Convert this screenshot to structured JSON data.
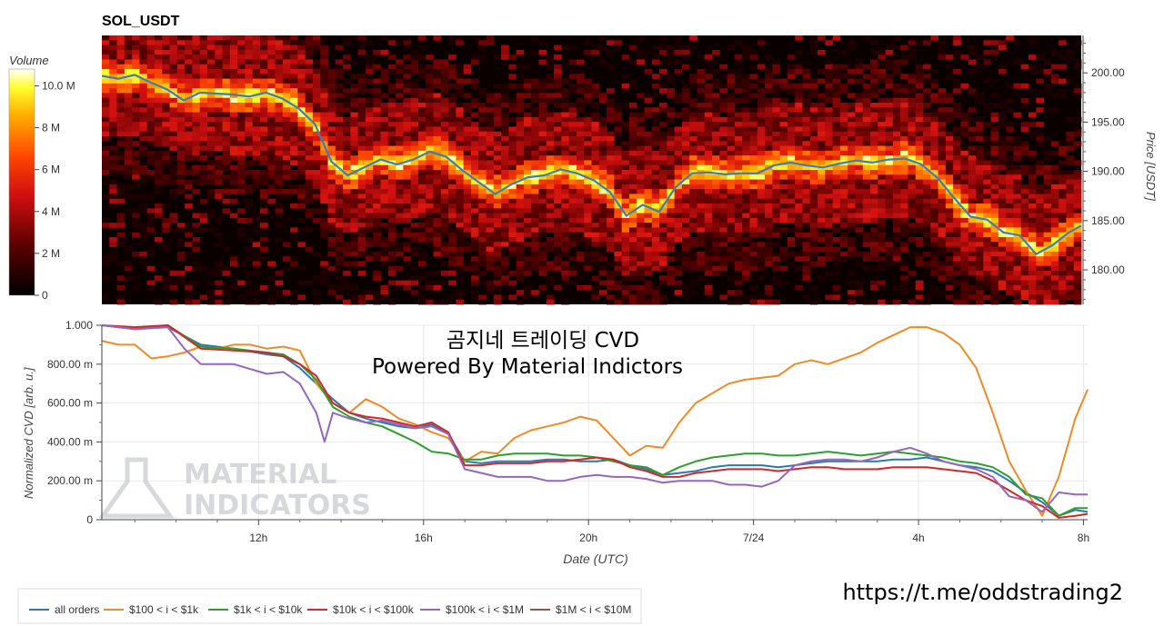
{
  "heatmap": {
    "title": "SOL_USDT",
    "colorbar": {
      "label": "Volume",
      "ticks": [
        {
          "value": 10,
          "label": "10.0 M"
        },
        {
          "value": 8,
          "label": "8 M"
        },
        {
          "value": 6,
          "label": "6 M"
        },
        {
          "value": 4,
          "label": "4 M"
        },
        {
          "value": 2,
          "label": "2 M"
        },
        {
          "value": 0,
          "label": "0"
        }
      ],
      "range": [
        0,
        10.8
      ]
    },
    "ylabel": "Price [USDT]",
    "ylim": [
      176.5,
      203.8
    ],
    "yticks": [
      {
        "value": 200,
        "label": "200.00"
      },
      {
        "value": 195,
        "label": "195.00"
      },
      {
        "value": 190,
        "label": "190.00"
      },
      {
        "value": 185,
        "label": "185.00"
      },
      {
        "value": 180,
        "label": "180.00"
      }
    ]
  },
  "cvd": {
    "overlay_title": "곰지네 트레이딩 CVD",
    "overlay_subtitle": "Powered By Material Indictors",
    "ylabel": "Normalized CVD [arb. u.]",
    "xlabel": "Date (UTC)",
    "yticks": [
      {
        "value": 1,
        "label": "1.000"
      },
      {
        "value": 0.8,
        "label": "800.00 m"
      },
      {
        "value": 0.6,
        "label": "600.00 m"
      },
      {
        "value": 0.4,
        "label": "400.00 m"
      },
      {
        "value": 0.2,
        "label": "200.00 m"
      },
      {
        "value": 0,
        "label": "0"
      }
    ],
    "xticks": [
      {
        "value": 12,
        "label": "12h"
      },
      {
        "value": 16,
        "label": "16h"
      },
      {
        "value": 20,
        "label": "20h"
      },
      {
        "value": 24,
        "label": "7/24"
      },
      {
        "value": 28,
        "label": "4h"
      },
      {
        "value": 32,
        "label": "8h"
      }
    ],
    "watermark": [
      "MATERIAL",
      "INDICATORS"
    ],
    "url": "https://t.me/oddstrading2"
  },
  "chart_data": [
    {
      "type": "heatmap",
      "title": "SOL_USDT",
      "x_unit": "hours (UTC)",
      "xlim": [
        8.2,
        32.1
      ],
      "ylabel": "Price [USDT]",
      "ylim": [
        176.5,
        203.8
      ],
      "colorbar_label": "Volume",
      "colorbar_range_M": [
        0,
        10.8
      ],
      "price_line": {
        "x": [
          8.2,
          8.6,
          9.0,
          9.4,
          9.8,
          10.2,
          10.6,
          11.0,
          11.4,
          11.8,
          12.2,
          12.6,
          13.0,
          13.4,
          13.8,
          14.2,
          14.6,
          15.0,
          15.4,
          15.8,
          16.2,
          16.6,
          17.0,
          17.4,
          17.8,
          18.2,
          18.6,
          19.0,
          19.4,
          19.8,
          20.2,
          20.6,
          21.0,
          21.4,
          21.8,
          22.2,
          22.6,
          23.0,
          23.4,
          23.8,
          24.2,
          24.6,
          25.0,
          25.4,
          25.8,
          26.2,
          26.6,
          27.0,
          27.4,
          27.8,
          28.2,
          28.6,
          29.0,
          29.4,
          29.8,
          30.2,
          30.6,
          31.0,
          31.4,
          31.8,
          32.1
        ],
        "y": [
          199.7,
          199.4,
          199.8,
          199.0,
          198.3,
          197.2,
          198.0,
          197.9,
          197.8,
          197.6,
          198.0,
          197.4,
          196.4,
          194.8,
          191.0,
          189.6,
          190.4,
          191.2,
          190.7,
          191.2,
          192.0,
          191.5,
          190.1,
          188.9,
          187.7,
          188.7,
          189.4,
          189.6,
          190.2,
          189.8,
          189.1,
          187.9,
          185.5,
          186.6,
          185.9,
          188.4,
          189.8,
          189.9,
          189.7,
          189.8,
          189.8,
          190.6,
          190.9,
          190.6,
          190.4,
          190.8,
          191.1,
          190.9,
          191.2,
          191.3,
          190.7,
          189.3,
          187.3,
          185.4,
          185.1,
          183.8,
          183.5,
          181.6,
          182.5,
          183.8,
          184.5
        ]
      }
    },
    {
      "type": "line",
      "ylabel": "Normalized CVD [arb. u.]",
      "xlabel": "Date (UTC)",
      "x_unit": "hours (UTC)",
      "xlim": [
        8.2,
        32.1
      ],
      "ylim": [
        0,
        1
      ],
      "legend_position": "bottom",
      "series": [
        {
          "name": "all orders",
          "color": "#2a78b4",
          "x": [
            8.2,
            9.0,
            9.8,
            10.6,
            11.4,
            12.2,
            12.6,
            13.0,
            13.4,
            13.8,
            14.2,
            14.6,
            15.0,
            15.4,
            15.8,
            16.2,
            16.6,
            17.0,
            17.4,
            17.8,
            18.2,
            18.6,
            19.0,
            19.4,
            19.8,
            20.2,
            20.6,
            21.0,
            21.4,
            21.8,
            22.2,
            22.6,
            23.0,
            23.4,
            23.8,
            24.2,
            24.6,
            25.0,
            25.4,
            25.8,
            26.2,
            26.6,
            27.0,
            27.4,
            27.8,
            28.2,
            28.6,
            29.0,
            29.4,
            29.8,
            30.2,
            30.6,
            31.0,
            31.4,
            31.8,
            32.1
          ],
          "y": [
            1.0,
            0.98,
            0.99,
            0.9,
            0.88,
            0.85,
            0.84,
            0.78,
            0.7,
            0.62,
            0.55,
            0.52,
            0.5,
            0.48,
            0.47,
            0.49,
            0.44,
            0.3,
            0.29,
            0.3,
            0.3,
            0.3,
            0.31,
            0.31,
            0.3,
            0.3,
            0.31,
            0.28,
            0.26,
            0.23,
            0.24,
            0.25,
            0.27,
            0.28,
            0.28,
            0.28,
            0.27,
            0.28,
            0.29,
            0.3,
            0.3,
            0.3,
            0.3,
            0.31,
            0.31,
            0.32,
            0.3,
            0.28,
            0.27,
            0.25,
            0.2,
            0.14,
            0.09,
            0.02,
            0.05,
            0.04
          ]
        },
        {
          "name": "$100 < i < $1k",
          "color": "#f08a24",
          "x": [
            8.2,
            8.6,
            9.0,
            9.4,
            9.8,
            10.2,
            10.6,
            11.0,
            11.4,
            11.8,
            12.2,
            12.6,
            13.0,
            13.4,
            13.8,
            14.2,
            14.6,
            15.0,
            15.4,
            15.8,
            16.2,
            16.6,
            17.0,
            17.4,
            17.8,
            18.2,
            18.6,
            19.0,
            19.4,
            19.8,
            20.2,
            20.6,
            21.0,
            21.4,
            21.8,
            22.2,
            22.6,
            23.0,
            23.4,
            23.8,
            24.2,
            24.6,
            25.0,
            25.4,
            25.8,
            26.2,
            26.6,
            27.0,
            27.4,
            27.8,
            28.2,
            28.6,
            29.0,
            29.4,
            29.8,
            30.2,
            30.6,
            31.0,
            31.4,
            31.8,
            32.1
          ],
          "y": [
            0.92,
            0.9,
            0.9,
            0.83,
            0.84,
            0.86,
            0.89,
            0.88,
            0.9,
            0.9,
            0.88,
            0.89,
            0.87,
            0.7,
            0.6,
            0.55,
            0.62,
            0.58,
            0.52,
            0.49,
            0.45,
            0.42,
            0.3,
            0.35,
            0.34,
            0.42,
            0.46,
            0.48,
            0.5,
            0.53,
            0.51,
            0.42,
            0.33,
            0.38,
            0.37,
            0.5,
            0.6,
            0.65,
            0.7,
            0.72,
            0.73,
            0.74,
            0.8,
            0.82,
            0.8,
            0.83,
            0.86,
            0.91,
            0.95,
            0.99,
            0.99,
            0.96,
            0.9,
            0.78,
            0.55,
            0.3,
            0.15,
            0.02,
            0.22,
            0.52,
            0.67
          ]
        },
        {
          "name": "$1k < i < $10k",
          "color": "#2ca02c",
          "x": [
            8.2,
            9.0,
            9.8,
            10.6,
            11.4,
            12.2,
            12.6,
            13.0,
            13.4,
            13.8,
            14.2,
            14.6,
            15.0,
            15.4,
            15.8,
            16.2,
            16.6,
            17.0,
            17.4,
            17.8,
            18.2,
            18.6,
            19.0,
            19.4,
            19.8,
            20.2,
            20.6,
            21.0,
            21.4,
            21.8,
            22.2,
            22.6,
            23.0,
            23.4,
            23.8,
            24.2,
            24.6,
            25.0,
            25.4,
            25.8,
            26.2,
            26.6,
            27.0,
            27.4,
            27.8,
            28.2,
            28.6,
            29.0,
            29.4,
            29.8,
            30.2,
            30.6,
            31.0,
            31.4,
            31.8,
            32.1
          ],
          "y": [
            1.0,
            0.98,
            1.0,
            0.89,
            0.88,
            0.86,
            0.85,
            0.8,
            0.72,
            0.58,
            0.53,
            0.5,
            0.48,
            0.44,
            0.4,
            0.35,
            0.34,
            0.31,
            0.31,
            0.33,
            0.34,
            0.34,
            0.34,
            0.33,
            0.33,
            0.32,
            0.3,
            0.28,
            0.27,
            0.23,
            0.27,
            0.3,
            0.32,
            0.33,
            0.34,
            0.34,
            0.33,
            0.33,
            0.34,
            0.35,
            0.34,
            0.33,
            0.34,
            0.35,
            0.34,
            0.33,
            0.32,
            0.3,
            0.29,
            0.27,
            0.22,
            0.13,
            0.11,
            0.02,
            0.06,
            0.06
          ]
        },
        {
          "name": "$10k < i < $100k",
          "color": "#d62728",
          "x": [
            8.2,
            9.0,
            9.8,
            10.6,
            11.4,
            12.2,
            12.6,
            13.0,
            13.4,
            13.8,
            14.2,
            14.6,
            15.0,
            15.4,
            15.8,
            16.2,
            16.6,
            17.0,
            17.4,
            17.8,
            18.2,
            18.6,
            19.0,
            19.4,
            19.8,
            20.2,
            20.6,
            21.0,
            21.4,
            21.8,
            22.2,
            22.6,
            23.0,
            23.4,
            23.8,
            24.2,
            24.6,
            25.0,
            25.4,
            25.8,
            26.2,
            26.6,
            27.0,
            27.4,
            27.8,
            28.2,
            28.6,
            29.0,
            29.4,
            29.8,
            30.2,
            30.6,
            31.0,
            31.4,
            31.8,
            32.1
          ],
          "y": [
            1.0,
            0.99,
            1.0,
            0.88,
            0.87,
            0.86,
            0.84,
            0.8,
            0.74,
            0.6,
            0.55,
            0.53,
            0.52,
            0.5,
            0.48,
            0.5,
            0.45,
            0.28,
            0.28,
            0.29,
            0.29,
            0.29,
            0.3,
            0.3,
            0.31,
            0.32,
            0.31,
            0.27,
            0.25,
            0.22,
            0.22,
            0.24,
            0.25,
            0.26,
            0.26,
            0.26,
            0.25,
            0.26,
            0.27,
            0.27,
            0.26,
            0.26,
            0.26,
            0.27,
            0.27,
            0.27,
            0.26,
            0.25,
            0.24,
            0.2,
            0.15,
            0.1,
            0.07,
            0.01,
            0.02,
            0.03
          ]
        },
        {
          "name": "$100k < i < $1M",
          "color": "#9467bd",
          "x": [
            8.2,
            9.0,
            9.8,
            10.2,
            10.6,
            11.0,
            11.4,
            12.2,
            12.6,
            13.0,
            13.4,
            13.6,
            13.8,
            14.2,
            14.6,
            15.0,
            15.4,
            15.8,
            16.2,
            16.6,
            17.0,
            17.4,
            17.8,
            18.2,
            18.6,
            19.0,
            19.4,
            19.8,
            20.2,
            20.6,
            21.0,
            21.4,
            21.8,
            22.2,
            22.6,
            23.0,
            23.4,
            23.8,
            24.2,
            24.6,
            25.0,
            25.4,
            25.8,
            26.2,
            26.6,
            27.0,
            27.4,
            27.8,
            28.2,
            28.6,
            29.0,
            29.4,
            29.8,
            30.2,
            30.6,
            31.0,
            31.4,
            31.8,
            32.1
          ],
          "y": [
            1.0,
            0.98,
            0.99,
            0.88,
            0.8,
            0.8,
            0.8,
            0.75,
            0.76,
            0.7,
            0.55,
            0.4,
            0.55,
            0.52,
            0.5,
            0.51,
            0.49,
            0.47,
            0.48,
            0.44,
            0.26,
            0.24,
            0.22,
            0.22,
            0.22,
            0.2,
            0.2,
            0.22,
            0.23,
            0.22,
            0.22,
            0.21,
            0.19,
            0.2,
            0.2,
            0.2,
            0.18,
            0.18,
            0.17,
            0.2,
            0.28,
            0.3,
            0.31,
            0.31,
            0.3,
            0.32,
            0.35,
            0.37,
            0.34,
            0.3,
            0.28,
            0.26,
            0.22,
            0.12,
            0.1,
            0.04,
            0.14,
            0.13,
            0.13
          ]
        },
        {
          "name": "$1M < i < $10M",
          "color": "#8c564b",
          "x": [],
          "y": []
        }
      ]
    }
  ]
}
